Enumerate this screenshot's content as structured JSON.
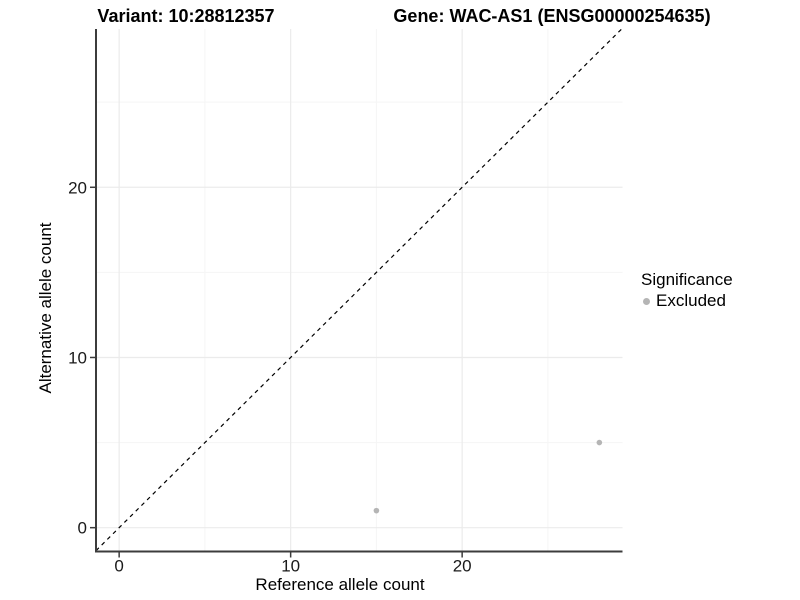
{
  "titles": {
    "variant": "Variant: 10:28812357",
    "gene": "Gene: WAC-AS1 (ENSG00000254635)"
  },
  "chart_data": {
    "type": "scatter",
    "xlabel": "Reference allele count",
    "ylabel": "Alternative allele count",
    "xlim": [
      -1.35,
      29.35
    ],
    "ylim": [
      -1.4,
      29.3
    ],
    "x_ticks": [
      0,
      10,
      20
    ],
    "y_ticks": [
      0,
      10,
      20
    ],
    "x_minor_ticks": [
      5,
      15,
      25
    ],
    "y_minor_ticks": [
      5,
      15,
      25
    ],
    "grid": true,
    "identity_line": {
      "style": "dashed",
      "slope": 1,
      "intercept": 0
    },
    "series": [
      {
        "name": "Excluded",
        "color": "#b5b5b5",
        "points": [
          [
            15,
            1
          ],
          [
            28,
            5
          ]
        ]
      }
    ],
    "legend": {
      "title": "Significance",
      "position": "right",
      "items": [
        {
          "label": "Excluded",
          "color": "#b5b5b5"
        }
      ]
    }
  },
  "colors": {
    "background": "#ffffff",
    "point_gray": "#b5b5b5",
    "grid_major": "#ebebeb",
    "grid_minor": "#f5f5f5",
    "axis_line": "#3c3c3c",
    "identity_line": "#000000",
    "tick_text": "#1a1a1a"
  }
}
